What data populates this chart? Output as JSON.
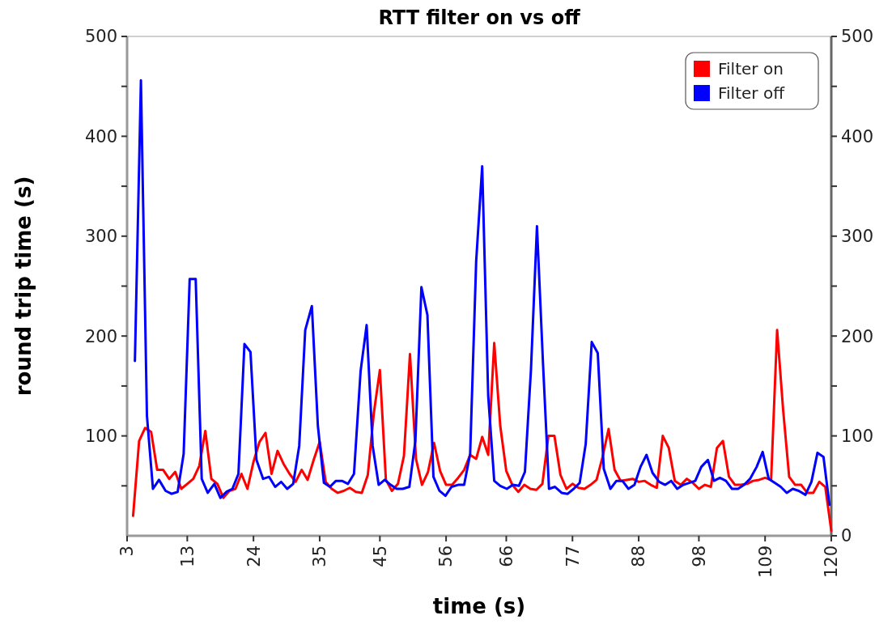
{
  "chart_data": {
    "type": "line",
    "title": "RTT filter on vs off",
    "xlabel": "time (s)",
    "ylabel": "round trip time (s)",
    "xlim": [
      3,
      120
    ],
    "xticks": [
      3,
      13,
      24,
      35,
      45,
      56,
      66,
      77,
      88,
      98,
      109,
      120
    ],
    "ylim": [
      0,
      500
    ],
    "yticks": [
      {
        "value": 50,
        "label": null
      },
      100,
      {
        "value": 150,
        "label": null
      },
      200,
      {
        "value": 250,
        "label": null
      },
      300,
      {
        "value": 350,
        "label": null
      },
      400,
      {
        "value": 450,
        "label": null
      },
      500
    ],
    "y2lim": [
      0,
      500
    ],
    "y2ticks": [
      0,
      {
        "value": 50,
        "label": null
      },
      100,
      {
        "value": 150,
        "label": null
      },
      200,
      {
        "value": 250,
        "label": null
      },
      300,
      {
        "value": 350,
        "label": null
      },
      400,
      {
        "value": 450,
        "label": null
      },
      500
    ],
    "grid": false,
    "legend": "top right",
    "marker": "none",
    "line_style": "solid",
    "series": [
      {
        "name": "Filter on",
        "color": "#ff0000",
        "x": [
          4,
          5,
          6,
          7,
          8,
          9,
          10,
          11,
          12,
          13,
          14,
          15,
          16,
          17,
          18,
          19,
          20,
          21,
          22,
          23,
          24,
          25,
          26,
          27,
          28,
          29,
          30,
          31,
          32,
          33,
          34,
          35,
          36,
          37,
          38,
          39,
          40,
          41,
          42,
          43,
          44,
          45,
          46,
          47,
          48,
          49,
          50,
          51,
          52,
          53,
          54,
          55,
          56,
          57,
          58,
          59,
          60,
          61,
          62,
          63,
          64,
          65,
          66,
          67,
          68,
          69,
          70,
          71,
          72,
          73,
          74,
          75,
          76,
          77,
          78,
          79,
          80,
          81,
          82,
          83,
          84,
          85,
          86,
          87,
          88,
          89,
          90,
          91,
          92,
          93,
          94,
          95,
          96,
          97,
          98,
          99,
          100,
          101,
          102,
          103,
          104,
          105,
          106,
          107,
          108,
          109,
          110,
          111,
          112,
          113,
          114,
          115,
          116,
          117,
          118,
          119,
          120
        ],
        "values": [
          20,
          95,
          108,
          104,
          66,
          66,
          57,
          64,
          47,
          52,
          57,
          70,
          105,
          57,
          52,
          38,
          45,
          47,
          62,
          47,
          74,
          94,
          103,
          62,
          85,
          72,
          62,
          54,
          66,
          56,
          76,
          94,
          54,
          47,
          43,
          45,
          48,
          44,
          43,
          61,
          123,
          166,
          56,
          45,
          52,
          80,
          182,
          77,
          51,
          64,
          93,
          65,
          51,
          51,
          58,
          66,
          81,
          77,
          99,
          81,
          193,
          110,
          65,
          51,
          44,
          51,
          47,
          46,
          52,
          100,
          100,
          61,
          47,
          52,
          48,
          47,
          51,
          56,
          79,
          107,
          66,
          55,
          56,
          57,
          54,
          55,
          51,
          48,
          100,
          88,
          55,
          51,
          57,
          53,
          47,
          51,
          49,
          88,
          95,
          59,
          51,
          51,
          52,
          55,
          56,
          58,
          56,
          206,
          126,
          59,
          51,
          51,
          43,
          43,
          54,
          49,
          5
        ]
      },
      {
        "name": "Filter off",
        "color": "#0000ff",
        "x": [
          4.3,
          5.3,
          6.3,
          7.3,
          8.3,
          9.4,
          10.4,
          11.4,
          12.4,
          13.4,
          14.4,
          15.4,
          16.4,
          17.5,
          18.5,
          19.5,
          20.5,
          21.5,
          22.5,
          23.5,
          24.5,
          25.6,
          26.6,
          27.6,
          28.6,
          29.6,
          30.6,
          31.6,
          32.6,
          33.7,
          34.7,
          35.7,
          36.7,
          37.7,
          38.7,
          39.7,
          40.7,
          41.8,
          42.8,
          43.8,
          44.8,
          45.8,
          46.8,
          47.8,
          48.8,
          49.9,
          50.9,
          51.9,
          52.9,
          53.9,
          54.9,
          55.9,
          56.9,
          58,
          59,
          60,
          61,
          62,
          63,
          64,
          65,
          66.1,
          67.1,
          68.1,
          69.1,
          70.1,
          71.1,
          72.1,
          73.1,
          74.1,
          75.2,
          76.2,
          77.2,
          78.2,
          79.2,
          80.2,
          81.2,
          82.2,
          83.3,
          84.3,
          85.3,
          86.3,
          87.3,
          88.3,
          89.3,
          90.3,
          91.4,
          92.4,
          93.4,
          94.4,
          95.4,
          96.4,
          97.4,
          98.4,
          99.5,
          100.5,
          101.5,
          102.5,
          103.5,
          104.5,
          105.5,
          106.5,
          107.6,
          108.6,
          109.6,
          110.6,
          111.6,
          112.6,
          113.6,
          114.6,
          115.7,
          116.7,
          117.7,
          118.7,
          119.7
        ],
        "values": [
          175,
          456,
          120,
          47,
          56,
          45,
          42,
          44,
          82,
          257,
          257,
          57,
          43,
          52,
          38,
          44,
          47,
          62,
          192,
          184,
          76,
          57,
          59,
          49,
          54,
          47,
          52,
          90,
          206,
          230,
          110,
          53,
          49,
          55,
          55,
          52,
          62,
          165,
          211,
          90,
          51,
          56,
          51,
          47,
          47,
          49,
          95,
          249,
          221,
          59,
          45,
          40,
          49,
          51,
          51,
          82,
          275,
          370,
          140,
          55,
          50,
          47,
          51,
          50,
          64,
          166,
          310,
          173,
          47,
          49,
          43,
          42,
          47,
          53,
          92,
          194,
          183,
          67,
          47,
          55,
          55,
          47,
          51,
          69,
          81,
          63,
          54,
          51,
          55,
          47,
          51,
          53,
          55,
          69,
          76,
          55,
          58,
          55,
          47,
          47,
          51,
          57,
          69,
          84,
          57,
          53,
          49,
          43,
          47,
          45,
          41,
          54,
          83,
          79,
          31
        ]
      }
    ]
  }
}
